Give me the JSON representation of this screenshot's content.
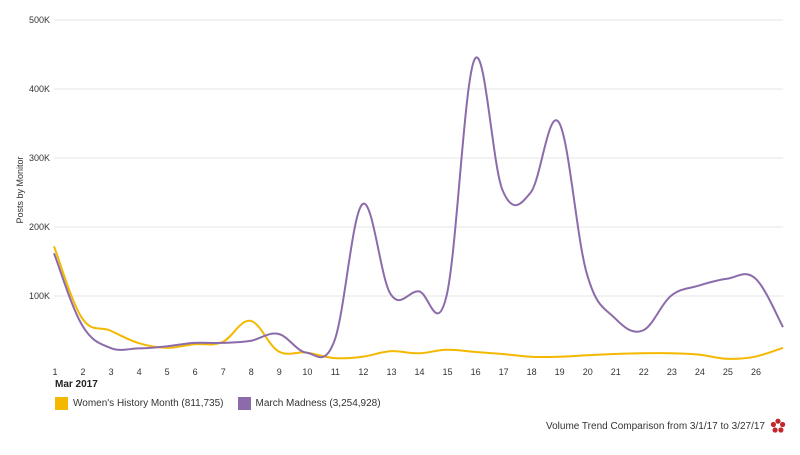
{
  "chart_data": {
    "type": "line",
    "xlabel": "Mar 2017",
    "ylabel": "Posts by Monitor",
    "ylim": [
      0,
      500000
    ],
    "yticks": [
      {
        "value": 100000,
        "label": "100K"
      },
      {
        "value": 200000,
        "label": "200K"
      },
      {
        "value": 300000,
        "label": "300K"
      },
      {
        "value": 400000,
        "label": "400K"
      },
      {
        "value": 500000,
        "label": "500K"
      }
    ],
    "x": [
      "1",
      "2",
      "3",
      "4",
      "5",
      "6",
      "7",
      "8",
      "9",
      "10",
      "11",
      "12",
      "13",
      "14",
      "15",
      "16",
      "17",
      "18",
      "19",
      "20",
      "21",
      "22",
      "23",
      "24",
      "25",
      "26",
      "27"
    ],
    "xtick_labels": [
      "1",
      "2",
      "3",
      "4",
      "5",
      "6",
      "7",
      "8",
      "9",
      "10",
      "11",
      "12",
      "13",
      "14",
      "15",
      "16",
      "17",
      "18",
      "19",
      "20",
      "21",
      "22",
      "23",
      "24",
      "25",
      "26",
      ""
    ],
    "grid": "horizontal",
    "legend_position": "bottom-left",
    "series": [
      {
        "name": "Women's History Month (811,735)",
        "color": "#f5b800",
        "values": [
          172000,
          68000,
          50000,
          32000,
          25000,
          30000,
          33000,
          64000,
          20000,
          18000,
          10000,
          12000,
          20000,
          17000,
          22000,
          19000,
          16000,
          12000,
          12000,
          14000,
          16000,
          17000,
          17000,
          15000,
          9000,
          12000,
          25000
        ]
      },
      {
        "name": "March Madness (3,254,928)",
        "color": "#8c6bab",
        "values": [
          162000,
          58000,
          25000,
          24000,
          27000,
          32000,
          32000,
          35000,
          45000,
          18000,
          35000,
          233000,
          103000,
          107000,
          100000,
          443000,
          253000,
          250000,
          352000,
          133000,
          68000,
          50000,
          100000,
          115000,
          125000,
          126000,
          55000
        ]
      }
    ]
  },
  "footer": {
    "caption": "Volume Trend Comparison from 3/1/17 to 3/27/17",
    "logo_icon": "flower-logo-icon",
    "logo_color": "#c0282d"
  }
}
